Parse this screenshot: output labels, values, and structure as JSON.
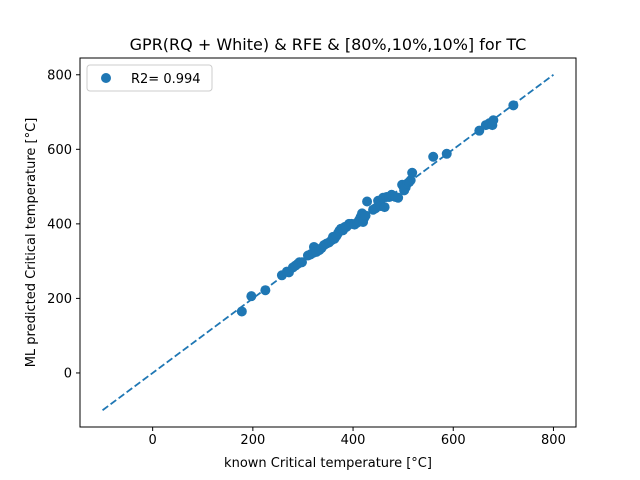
{
  "chart_data": {
    "type": "scatter",
    "title": "GPR(RQ + White) & RFE & [80%,10%,10%] for TC",
    "xlabel": "known Critical temperature [°C]",
    "ylabel": "ML predicted Critical temperature [°C]",
    "xlim": [
      -145,
      845
    ],
    "ylim": [
      -145,
      845
    ],
    "xticks": [
      0,
      200,
      400,
      600,
      800
    ],
    "yticks": [
      0,
      200,
      400,
      600,
      800
    ],
    "xtick_labels": [
      "0",
      "200",
      "400",
      "600",
      "800"
    ],
    "ytick_labels": [
      "0",
      "200",
      "400",
      "600",
      "800"
    ],
    "grid": false,
    "legend_position": "top-left",
    "legend_label": "R2= 0.994",
    "point_color": "#1f77b4",
    "reference_line": {
      "x": [
        -100,
        800
      ],
      "y": [
        -100,
        800
      ],
      "style": "dashed",
      "color": "#1f77b4"
    },
    "points": [
      [
        178,
        165
      ],
      [
        197,
        206
      ],
      [
        225,
        222
      ],
      [
        258,
        262
      ],
      [
        268,
        272
      ],
      [
        272,
        270
      ],
      [
        280,
        283
      ],
      [
        285,
        288
      ],
      [
        290,
        293
      ],
      [
        293,
        297
      ],
      [
        298,
        297
      ],
      [
        310,
        315
      ],
      [
        315,
        318
      ],
      [
        320,
        322
      ],
      [
        322,
        338
      ],
      [
        327,
        325
      ],
      [
        333,
        330
      ],
      [
        337,
        335
      ],
      [
        342,
        343
      ],
      [
        347,
        347
      ],
      [
        352,
        350
      ],
      [
        357,
        356
      ],
      [
        360,
        365
      ],
      [
        363,
        360
      ],
      [
        367,
        368
      ],
      [
        370,
        375
      ],
      [
        373,
        382
      ],
      [
        376,
        387
      ],
      [
        380,
        383
      ],
      [
        384,
        392
      ],
      [
        387,
        392
      ],
      [
        392,
        400
      ],
      [
        397,
        400
      ],
      [
        403,
        398
      ],
      [
        408,
        403
      ],
      [
        412,
        410
      ],
      [
        415,
        418
      ],
      [
        418,
        428
      ],
      [
        420,
        405
      ],
      [
        422,
        415
      ],
      [
        425,
        422
      ],
      [
        428,
        460
      ],
      [
        440,
        438
      ],
      [
        445,
        442
      ],
      [
        450,
        462
      ],
      [
        455,
        448
      ],
      [
        460,
        470
      ],
      [
        463,
        445
      ],
      [
        467,
        472
      ],
      [
        472,
        472
      ],
      [
        477,
        478
      ],
      [
        485,
        472
      ],
      [
        490,
        470
      ],
      [
        498,
        505
      ],
      [
        502,
        490
      ],
      [
        505,
        498
      ],
      [
        508,
        508
      ],
      [
        512,
        512
      ],
      [
        515,
        517
      ],
      [
        518,
        537
      ],
      [
        560,
        580
      ],
      [
        587,
        588
      ],
      [
        652,
        650
      ],
      [
        665,
        665
      ],
      [
        672,
        670
      ],
      [
        678,
        665
      ],
      [
        680,
        678
      ],
      [
        720,
        718
      ]
    ]
  }
}
